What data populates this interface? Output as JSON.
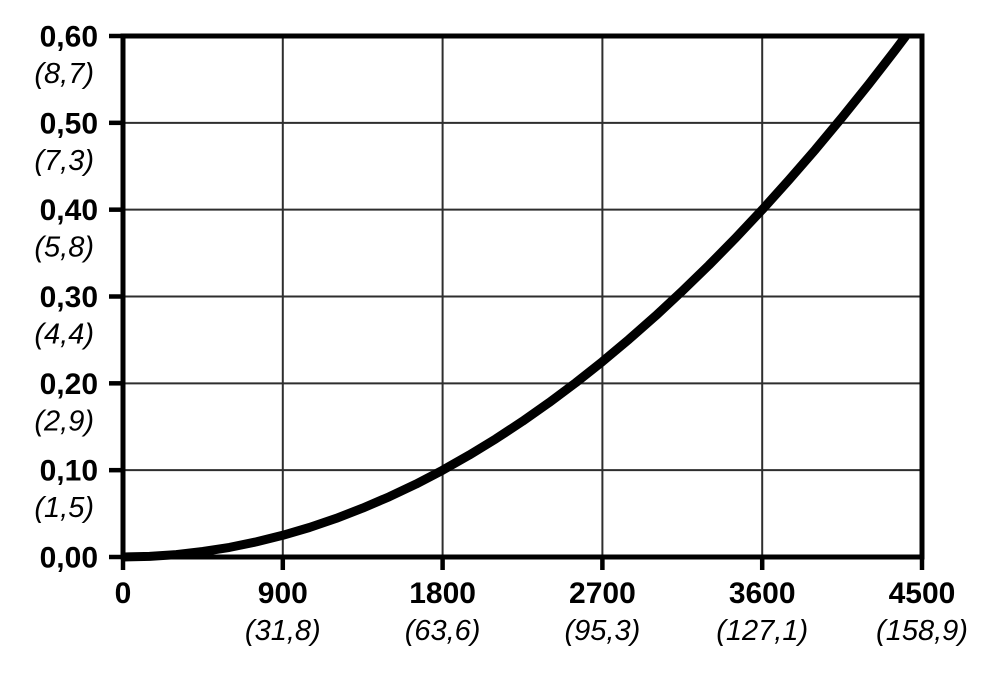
{
  "chart_data": {
    "type": "line",
    "title": "",
    "xlabel": "",
    "ylabel": "",
    "grid": true,
    "legend": false,
    "background_color": "#ffffff",
    "colors": {
      "curve": "#000000",
      "frame": "#000000",
      "grid": "#2e2e2e",
      "text": "#000000"
    },
    "x_axis": {
      "min": 0,
      "max": 4500,
      "ticks": [
        {
          "value": 0,
          "label": "0",
          "secondary": ""
        },
        {
          "value": 900,
          "label": "900",
          "secondary": "(31,8)"
        },
        {
          "value": 1800,
          "label": "1800",
          "secondary": "(63,6)"
        },
        {
          "value": 2700,
          "label": "2700",
          "secondary": "(95,3)"
        },
        {
          "value": 3600,
          "label": "3600",
          "secondary": "(127,1)"
        },
        {
          "value": 4500,
          "label": "4500",
          "secondary": "(158,9)"
        }
      ]
    },
    "y_axis": {
      "min": 0,
      "max": 0.6,
      "ticks": [
        {
          "value": 0.0,
          "label": "0,00",
          "secondary": ""
        },
        {
          "value": 0.1,
          "label": "0,10",
          "secondary": "(1,5)"
        },
        {
          "value": 0.2,
          "label": "0,20",
          "secondary": "(2,9)"
        },
        {
          "value": 0.3,
          "label": "0,30",
          "secondary": "(4,4)"
        },
        {
          "value": 0.4,
          "label": "0,40",
          "secondary": "(5,8)"
        },
        {
          "value": 0.5,
          "label": "0,50",
          "secondary": "(7,3)"
        },
        {
          "value": 0.6,
          "label": "0,60",
          "secondary": "(8,7)"
        }
      ]
    },
    "series": [
      {
        "name": "curve",
        "points": [
          [
            0,
            0.0
          ],
          [
            150,
            0.0007
          ],
          [
            300,
            0.0028
          ],
          [
            450,
            0.0063
          ],
          [
            600,
            0.0111
          ],
          [
            750,
            0.0174
          ],
          [
            900,
            0.025
          ],
          [
            1050,
            0.034
          ],
          [
            1200,
            0.0444
          ],
          [
            1350,
            0.0563
          ],
          [
            1500,
            0.0694
          ],
          [
            1650,
            0.084
          ],
          [
            1800,
            0.1
          ],
          [
            1950,
            0.1174
          ],
          [
            2100,
            0.1361
          ],
          [
            2250,
            0.1563
          ],
          [
            2400,
            0.1778
          ],
          [
            2550,
            0.2007
          ],
          [
            2700,
            0.225
          ],
          [
            2850,
            0.2507
          ],
          [
            3000,
            0.2778
          ],
          [
            3150,
            0.3063
          ],
          [
            3300,
            0.3361
          ],
          [
            3450,
            0.3674
          ],
          [
            3600,
            0.4
          ],
          [
            3750,
            0.434
          ],
          [
            3900,
            0.4694
          ],
          [
            4050,
            0.5063
          ],
          [
            4200,
            0.5444
          ],
          [
            4350,
            0.584
          ],
          [
            4409,
            0.6
          ]
        ]
      }
    ]
  }
}
